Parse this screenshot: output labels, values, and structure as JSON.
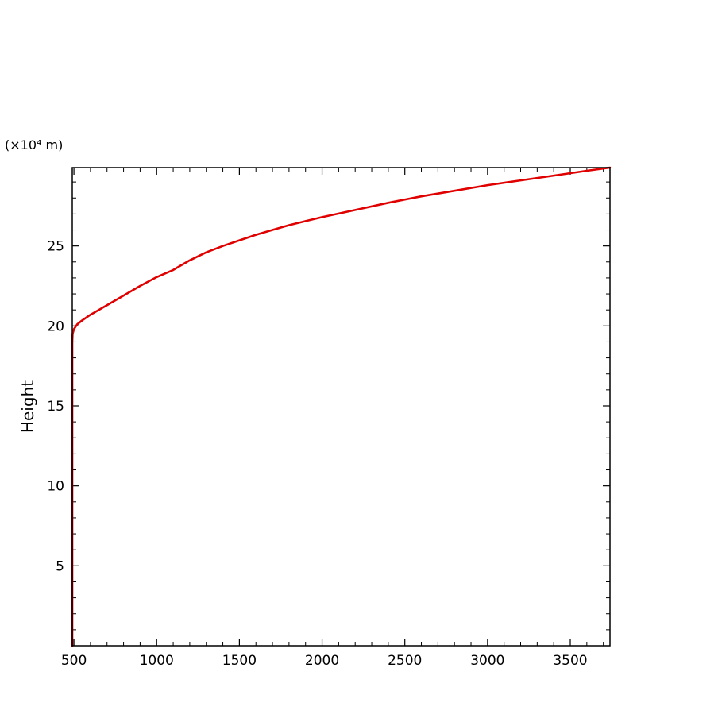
{
  "chart_data": {
    "type": "line",
    "title": "",
    "xlabel": "",
    "ylabel": "Height",
    "y_unit": "(×10⁴ m)",
    "xlim": [
      490,
      3740
    ],
    "ylim": [
      0,
      29.9
    ],
    "x_ticks": [
      500,
      1000,
      1500,
      2000,
      2500,
      3000,
      3500
    ],
    "y_ticks": [
      5,
      10,
      15,
      20,
      25
    ],
    "x_minor_step": 100,
    "y_minor_step": 1,
    "grid": false,
    "legend": "none",
    "series": [
      {
        "color": "#e00000",
        "points": [
          [
            490,
            0
          ],
          [
            490,
            5
          ],
          [
            490,
            10
          ],
          [
            490,
            15
          ],
          [
            490,
            19
          ],
          [
            492,
            19.5
          ],
          [
            500,
            19.8
          ],
          [
            520,
            20.1
          ],
          [
            550,
            20.35
          ],
          [
            600,
            20.7
          ],
          [
            700,
            21.3
          ],
          [
            800,
            21.9
          ],
          [
            900,
            22.5
          ],
          [
            1000,
            23.05
          ],
          [
            1100,
            23.5
          ],
          [
            1150,
            23.8
          ],
          [
            1200,
            24.1
          ],
          [
            1300,
            24.6
          ],
          [
            1400,
            25.0
          ],
          [
            1500,
            25.35
          ],
          [
            1600,
            25.7
          ],
          [
            1700,
            26.0
          ],
          [
            1800,
            26.3
          ],
          [
            1900,
            26.55
          ],
          [
            2000,
            26.8
          ],
          [
            2200,
            27.25
          ],
          [
            2400,
            27.7
          ],
          [
            2600,
            28.1
          ],
          [
            2800,
            28.45
          ],
          [
            3000,
            28.8
          ],
          [
            3200,
            29.1
          ],
          [
            3400,
            29.4
          ],
          [
            3600,
            29.7
          ],
          [
            3740,
            29.9
          ]
        ]
      }
    ]
  }
}
